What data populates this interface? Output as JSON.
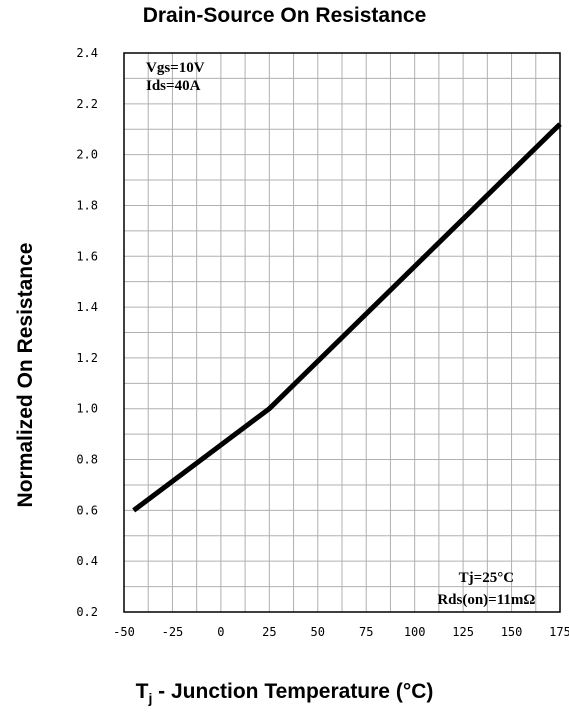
{
  "chart_data": {
    "type": "line",
    "title": "Drain-Source On Resistance",
    "ylabel": "Normalized On Resistance",
    "xlabel": {
      "main": "T",
      "sub": "j",
      "rest": " - Junction Temperature (°C)"
    },
    "xlim": [
      -50,
      175
    ],
    "ylim": [
      0.2,
      2.4
    ],
    "x_ticks": [
      -50,
      -25,
      0,
      25,
      50,
      75,
      100,
      125,
      150,
      175
    ],
    "y_ticks": [
      0.2,
      0.4,
      0.6,
      0.8,
      1.0,
      1.2,
      1.4,
      1.6,
      1.8,
      2.0,
      2.2,
      2.4
    ],
    "y_tick_labels": [
      "0.2",
      "0.4",
      "0.6",
      "0.8",
      "1.0",
      "1.2",
      "1.4",
      "1.6",
      "1.8",
      "2.0",
      "2.2",
      "2.4"
    ],
    "x_minor_step": 12.5,
    "y_minor_step": 0.1,
    "grid": true,
    "series": [
      {
        "x": [
          -45,
          25,
          175
        ],
        "y": [
          0.6,
          1.0,
          2.12
        ]
      }
    ],
    "annotations": {
      "top_left": [
        "Vgs=10V",
        "Ids=40A"
      ],
      "bottom_right": [
        "Tj=25°C",
        "Rds(on)=11mΩ"
      ]
    },
    "colors": {
      "line": "#000000",
      "grid": "#b0b0b0",
      "frame": "#000000"
    }
  }
}
